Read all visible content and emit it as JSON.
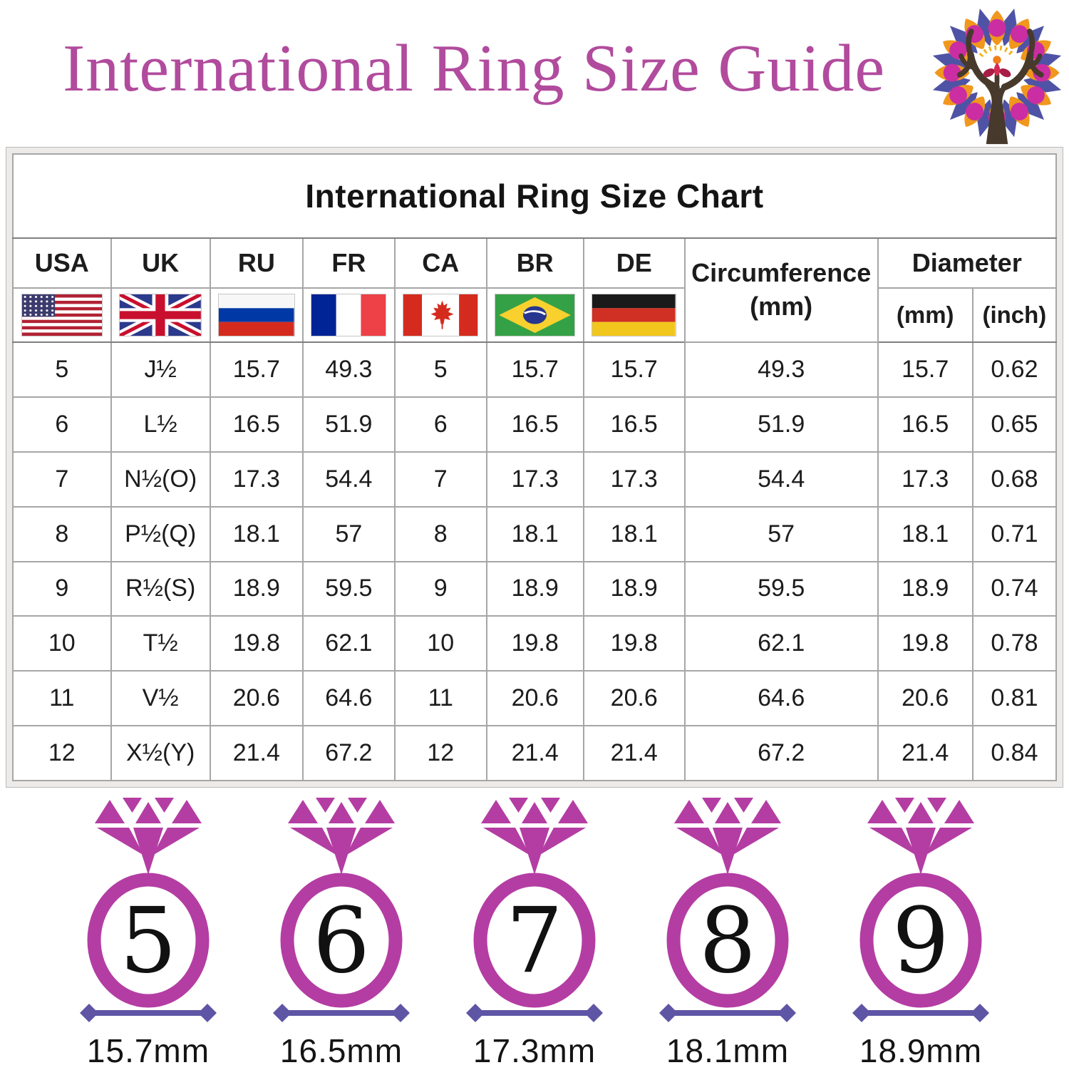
{
  "header": {
    "title": "International Ring Size Guide",
    "logo_icon": "antler-tree-mandala-logo"
  },
  "table_header": {
    "title": "International Ring Size Chart",
    "country_codes": [
      "USA",
      "UK",
      "RU",
      "FR",
      "CA",
      "BR",
      "DE"
    ],
    "flag_icons": [
      "usa-flag",
      "uk-flag",
      "ru-flag",
      "fr-flag",
      "ca-flag",
      "br-flag",
      "de-flag"
    ],
    "circumference_line1": "Circumference",
    "circumference_line2": "(mm)",
    "diameter": "Diameter",
    "diameter_mm": "(mm)",
    "diameter_inch": "(inch)"
  },
  "chart_data": {
    "type": "table",
    "title": "International Ring Size Chart",
    "columns": [
      "USA",
      "UK",
      "RU",
      "FR",
      "CA",
      "BR",
      "DE",
      "Circumference (mm)",
      "Diameter (mm)",
      "Diameter (inch)"
    ],
    "rows": [
      [
        "5",
        "J½",
        "15.7",
        "49.3",
        "5",
        "15.7",
        "15.7",
        "49.3",
        "15.7",
        "0.62"
      ],
      [
        "6",
        "L½",
        "16.5",
        "51.9",
        "6",
        "16.5",
        "16.5",
        "51.9",
        "16.5",
        "0.65"
      ],
      [
        "7",
        "N½(O)",
        "17.3",
        "54.4",
        "7",
        "17.3",
        "17.3",
        "54.4",
        "17.3",
        "0.68"
      ],
      [
        "8",
        "P½(Q)",
        "18.1",
        "57",
        "8",
        "18.1",
        "18.1",
        "57",
        "18.1",
        "0.71"
      ],
      [
        "9",
        "R½(S)",
        "18.9",
        "59.5",
        "9",
        "18.9",
        "18.9",
        "59.5",
        "18.9",
        "0.74"
      ],
      [
        "10",
        "T½",
        "19.8",
        "62.1",
        "10",
        "19.8",
        "19.8",
        "62.1",
        "19.8",
        "0.78"
      ],
      [
        "11",
        "V½",
        "20.6",
        "64.6",
        "11",
        "20.6",
        "20.6",
        "64.6",
        "20.6",
        "0.81"
      ],
      [
        "12",
        "X½(Y)",
        "21.4",
        "67.2",
        "12",
        "21.4",
        "21.4",
        "67.2",
        "21.4",
        "0.84"
      ]
    ]
  },
  "rings": [
    {
      "size": "5",
      "diameter_label": "15.7mm"
    },
    {
      "size": "6",
      "diameter_label": "16.5mm"
    },
    {
      "size": "7",
      "diameter_label": "17.3mm"
    },
    {
      "size": "8",
      "diameter_label": "18.1mm"
    },
    {
      "size": "9",
      "diameter_label": "18.9mm"
    }
  ],
  "colors": {
    "title_magenta": "#b14b9d",
    "ring_magenta": "#b43da3",
    "measure_indigo": "#5e55a5",
    "table_border_gray": "#7f7f7f",
    "text_black": "#1c1c1c"
  }
}
